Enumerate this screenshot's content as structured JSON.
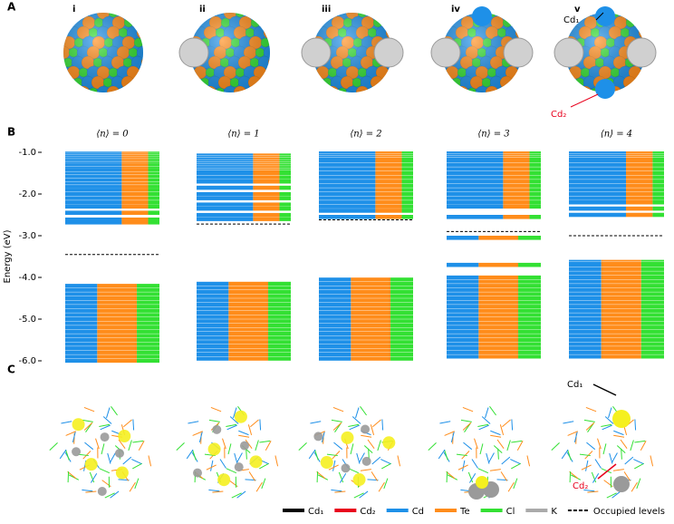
{
  "panel_letters": [
    "A",
    "B",
    "C"
  ],
  "panel_a": {
    "labels": [
      "i",
      "ii",
      "iii",
      "iv",
      "v"
    ],
    "annotations": [
      "Cd₁",
      "Cd₂"
    ]
  },
  "chart_data": {
    "type": "levels",
    "y_label": "Energy (eV)",
    "ylim": [
      -6,
      -1
    ],
    "yticks": [
      {
        "value": -1,
        "label": "-1.0"
      },
      {
        "value": -2,
        "label": "-2.0"
      },
      {
        "value": -3,
        "label": "-3.0"
      },
      {
        "value": -4,
        "label": "-4.0"
      },
      {
        "value": -5,
        "label": "-5.0"
      },
      {
        "value": -6,
        "label": "-6.0"
      }
    ],
    "panels": [
      {
        "title": "⟨n⟩ = 0",
        "occupied": -3.45,
        "levels": [
          -1.0,
          -1.04,
          -1.08,
          -1.12,
          -1.16,
          -1.2,
          -1.25,
          -1.3,
          -1.36,
          -1.42,
          -1.5,
          -1.58,
          -1.66,
          -1.74,
          -1.82,
          -1.9,
          -2.0,
          -2.1,
          -2.2,
          -2.3,
          -2.45,
          -2.6,
          -2.68,
          -4.2,
          -4.3,
          -4.4,
          -4.5,
          -4.6,
          -4.7,
          -4.8,
          -4.9,
          -5.0,
          -5.1,
          -5.2,
          -5.3,
          -5.4,
          -5.5,
          -5.6,
          -5.7,
          -5.8,
          -5.9,
          -6.0
        ]
      },
      {
        "title": "⟨n⟩ = 1",
        "occupied": -2.72,
        "levels": [
          -1.05,
          -1.1,
          -1.15,
          -1.2,
          -1.25,
          -1.3,
          -1.35,
          -1.4,
          -1.45,
          -1.5,
          -1.6,
          -1.7,
          -1.85,
          -2.0,
          -2.1,
          -2.25,
          -2.35,
          -2.5,
          -2.6,
          -4.15,
          -4.25,
          -4.35,
          -4.45,
          -4.55,
          -4.65,
          -4.75,
          -4.85,
          -4.95,
          -5.05,
          -5.15,
          -5.25,
          -5.35,
          -5.45,
          -5.55,
          -5.65,
          -5.75,
          -5.85,
          -5.95
        ]
      },
      {
        "title": "⟨n⟩ = 2",
        "occupied": -2.62,
        "levels": [
          -1.0,
          -1.05,
          -1.1,
          -1.15,
          -1.2,
          -1.3,
          -1.4,
          -1.5,
          -1.6,
          -1.7,
          -1.8,
          -1.9,
          -2.0,
          -2.1,
          -2.2,
          -2.3,
          -2.4,
          -2.55,
          -4.05,
          -4.15,
          -4.25,
          -4.35,
          -4.45,
          -4.55,
          -4.65,
          -4.75,
          -4.85,
          -4.95,
          -5.05,
          -5.15,
          -5.25,
          -5.35,
          -5.45,
          -5.55,
          -5.65,
          -5.75,
          -5.85,
          -5.95
        ]
      },
      {
        "title": "⟨n⟩ = 3",
        "occupied": -2.9,
        "levels": [
          -1.0,
          -1.05,
          -1.1,
          -1.15,
          -1.2,
          -1.3,
          -1.4,
          -1.5,
          -1.6,
          -1.7,
          -1.8,
          -1.9,
          -2.0,
          -2.1,
          -2.2,
          -2.3,
          -2.55,
          -3.05,
          -3.7,
          -4.0,
          -4.1,
          -4.2,
          -4.3,
          -4.4,
          -4.5,
          -4.6,
          -4.7,
          -4.8,
          -4.9,
          -5.0,
          -5.1,
          -5.2,
          -5.3,
          -5.4,
          -5.5,
          -5.6,
          -5.7,
          -5.8,
          -5.9
        ]
      },
      {
        "title": "⟨n⟩ = 4",
        "occupied": -3.0,
        "levels": [
          -1.0,
          -1.05,
          -1.1,
          -1.15,
          -1.2,
          -1.3,
          -1.4,
          -1.5,
          -1.6,
          -1.7,
          -1.8,
          -1.9,
          -2.0,
          -2.1,
          -2.2,
          -2.35,
          -2.5,
          -3.6,
          -3.65,
          -3.7,
          -3.8,
          -3.9,
          -4.0,
          -4.1,
          -4.2,
          -4.3,
          -4.4,
          -4.5,
          -4.6,
          -4.7,
          -4.8,
          -4.9,
          -5.0,
          -5.1,
          -5.2,
          -5.3,
          -5.4,
          -5.5,
          -5.6,
          -5.7,
          -5.8,
          -5.9
        ]
      }
    ]
  },
  "panel_c": {
    "annotations": [
      "Cd₁",
      "Cd₂"
    ]
  },
  "legend": [
    {
      "name": "Cd₁",
      "color": "#000000"
    },
    {
      "name": "Cd₂",
      "color": "#e8001c"
    },
    {
      "name": "Cd",
      "color": "#1e90e8"
    },
    {
      "name": "Te",
      "color": "#ff8c1a"
    },
    {
      "name": "Cl",
      "color": "#33e033"
    },
    {
      "name": "K",
      "color": "#aaaaaa"
    },
    {
      "name": "Occupied levels",
      "color": "#000000",
      "dashed": true
    }
  ]
}
